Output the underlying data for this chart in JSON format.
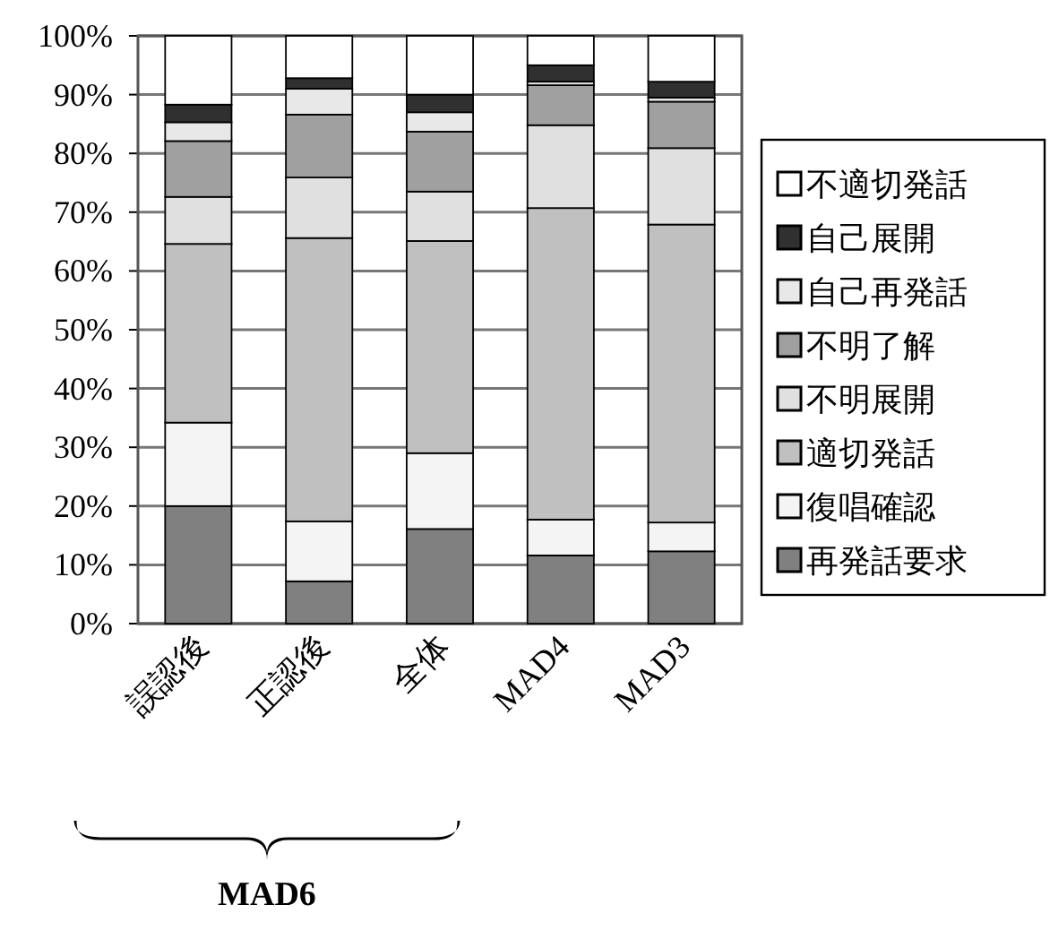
{
  "chart_data": {
    "type": "bar",
    "stacked": true,
    "categories": [
      "誤認後",
      "正認後",
      "全体",
      "MAD4",
      "MAD3"
    ],
    "series": [
      {
        "name": "再発話要求",
        "color": "#808080",
        "values": [
          20.0,
          7.2,
          16.1,
          11.6,
          12.3
        ]
      },
      {
        "name": "復唱確認",
        "color": "#f4f4f4",
        "values": [
          14.2,
          10.2,
          12.9,
          6.1,
          4.9
        ]
      },
      {
        "name": "適切発話",
        "color": "#c0c0c0",
        "values": [
          30.4,
          48.2,
          36.1,
          53.0,
          50.7
        ]
      },
      {
        "name": "不明展開",
        "color": "#e0e0e0",
        "values": [
          8.0,
          10.3,
          8.4,
          14.1,
          13.0
        ]
      },
      {
        "name": "不明了解",
        "color": "#a0a0a0",
        "values": [
          9.5,
          10.7,
          10.2,
          6.8,
          7.9
        ]
      },
      {
        "name": "自己再発話",
        "color": "#e8e8e8",
        "values": [
          3.2,
          4.4,
          3.3,
          0.6,
          0.7
        ]
      },
      {
        "name": "自己展開",
        "color": "#303030",
        "values": [
          3.0,
          1.8,
          3.0,
          2.8,
          2.7
        ]
      },
      {
        "name": "不適切発話",
        "color": "#ffffff",
        "values": [
          11.7,
          7.2,
          10.0,
          5.0,
          7.8
        ]
      }
    ],
    "ylim": [
      0,
      100
    ],
    "yticks": [
      {
        "value": 0,
        "label": "0%"
      },
      {
        "value": 10,
        "label": "10%"
      },
      {
        "value": 20,
        "label": "20%"
      },
      {
        "value": 30,
        "label": "30%"
      },
      {
        "value": 40,
        "label": "40%"
      },
      {
        "value": 50,
        "label": "50%"
      },
      {
        "value": 60,
        "label": "60%"
      },
      {
        "value": 70,
        "label": "70%"
      },
      {
        "value": 80,
        "label": "80%"
      },
      {
        "value": 90,
        "label": "90%"
      },
      {
        "value": 100,
        "label": "100%"
      }
    ],
    "grid": "y",
    "legend": "right",
    "annotations": [
      "MAD6"
    ]
  }
}
